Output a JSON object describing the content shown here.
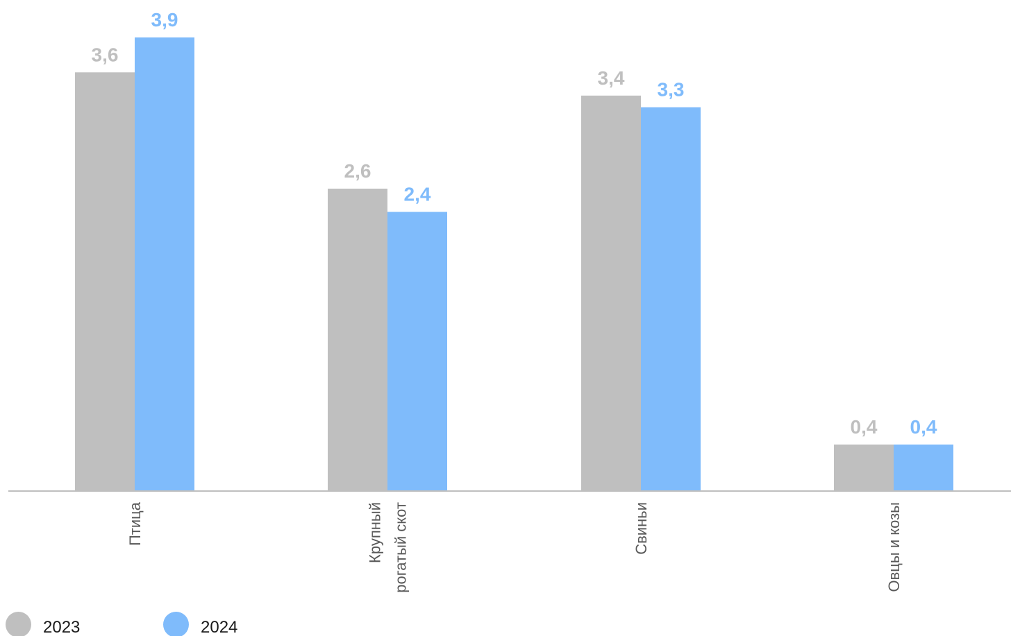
{
  "chart_data": {
    "type": "bar",
    "categories": [
      "Птица",
      "Крупный рогатый скот",
      "Свиньи",
      "Овцы и козы"
    ],
    "category_lines": [
      [
        "Птица"
      ],
      [
        "Крупный",
        "рогатый скот"
      ],
      [
        "Свиньи"
      ],
      [
        "Овцы и козы"
      ]
    ],
    "series": [
      {
        "name": "2023",
        "values": [
          3.6,
          2.6,
          3.4,
          0.4
        ],
        "labels": [
          "3,6",
          "2,6",
          "3,4",
          "0,4"
        ],
        "color": "#bfbfbf",
        "label_color": "#bfbfbf"
      },
      {
        "name": "2024",
        "values": [
          3.9,
          2.4,
          3.3,
          0.4
        ],
        "labels": [
          "3,9",
          "2,4",
          "3,3",
          "0,4"
        ],
        "color": "#7fbbfb",
        "label_color": "#7fbbfb"
      }
    ],
    "ylim": [
      0,
      3.9
    ],
    "grid": false,
    "legend_position": "bottom-left",
    "axis_color": "#bfbfbf"
  },
  "legend": {
    "items": [
      {
        "label": "2023",
        "color": "#bfbfbf"
      },
      {
        "label": "2024",
        "color": "#7fbbfb"
      }
    ]
  }
}
